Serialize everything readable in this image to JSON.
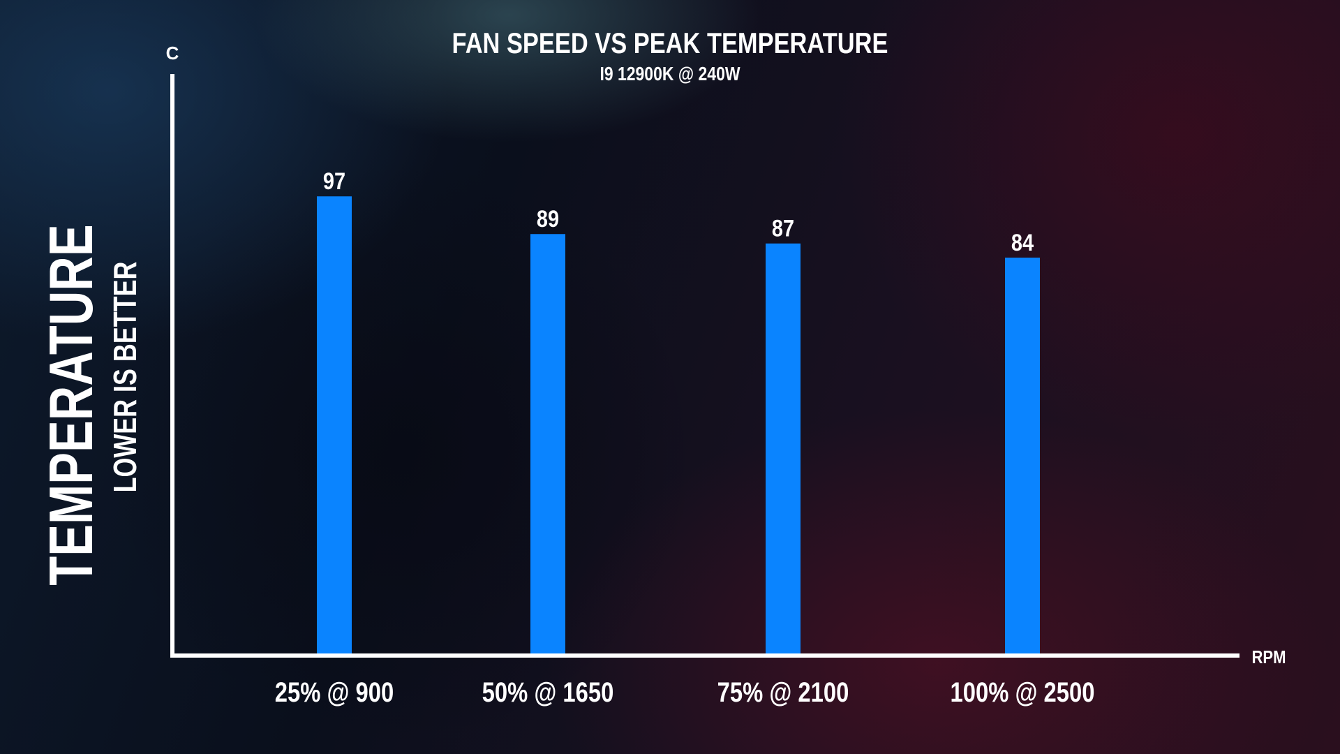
{
  "chart_data": {
    "type": "bar",
    "title": "FAN SPEED VS PEAK TEMPERATURE",
    "subtitle": "I9 12900K @ 240W",
    "ylabel": "TEMPERATURE",
    "ylabel_sub": "LOWER IS BETTER",
    "y_unit": "C",
    "x_unit": "RPM",
    "categories": [
      "25% @ 900",
      "50% @ 1650",
      "75% @ 2100",
      "100% @ 2500"
    ],
    "values": [
      97,
      89,
      87,
      84
    ],
    "ylim": [
      0,
      115
    ],
    "bar_color": "#0a84ff",
    "axis_color": "#ffffff",
    "grid": false,
    "legend": false
  }
}
